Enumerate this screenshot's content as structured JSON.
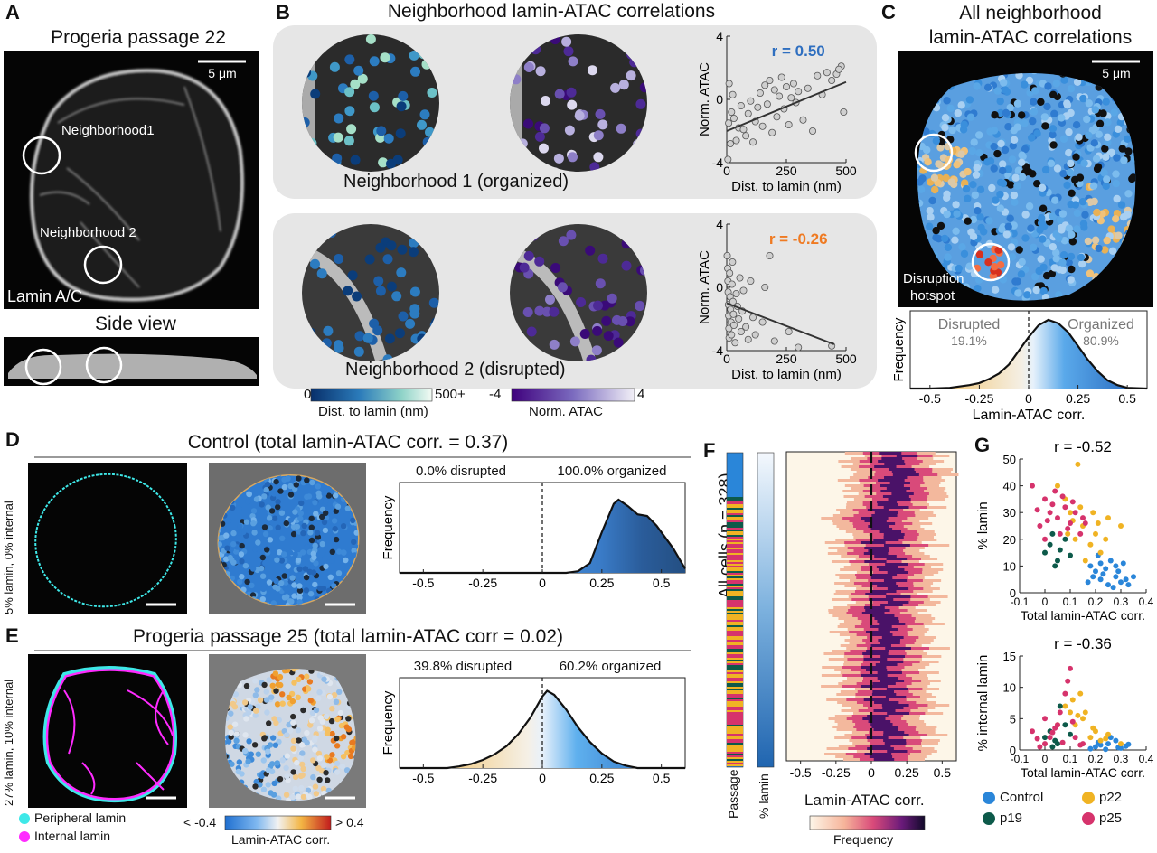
{
  "panels": {
    "A": {
      "letter": "A",
      "title": "Progeria passage 22",
      "scalebar": "5 μm",
      "neighborhood1": "Neighborhood1",
      "neighborhood2": "Neighborhood 2",
      "stain": "Lamin A/C",
      "side_view": "Side view"
    },
    "B": {
      "letter": "B",
      "title": "Neighborhood lamin-ATAC correlations",
      "n1_caption": "Neighborhood 1 (organized)",
      "n2_caption": "Neighborhood 2 (disrupted)",
      "colorbar_dist": {
        "min": "0",
        "max": "500+",
        "label": "Dist. to lamin (nm)"
      },
      "colorbar_atac": {
        "min": "-4",
        "max": "4",
        "label": "Norm. ATAC"
      }
    },
    "C": {
      "letter": "C",
      "title_line1": "All neighborhood",
      "title_line2": "lamin-ATAC correlations",
      "scalebar": "5 μm",
      "hotspot_line1": "Disruption",
      "hotspot_line2": "hotspot",
      "disrupted_label": "Disrupted",
      "disrupted_pct": "19.1%",
      "organized_label": "Organized",
      "organized_pct": "80.9%"
    },
    "D": {
      "letter": "D",
      "title": "Control (total lamin-ATAC corr. = 0.37)",
      "side_label": "5% lamin, 0% internal",
      "disrupted_text": "0.0% disrupted",
      "organized_text": "100.0% organized"
    },
    "E": {
      "letter": "E",
      "title": "Progeria passage 25 (total lamin-ATAC corr = 0.02)",
      "side_label": "27% lamin,  10% internal",
      "disrupted_text": "39.8% disrupted",
      "organized_text": "60.2% organized",
      "legend_peripheral": "Peripheral lamin",
      "legend_internal": "Internal lamin",
      "corr_bar_min": "< -0.4",
      "corr_bar_max": "> 0.4",
      "corr_bar_label": "Lamin-ATAC corr."
    },
    "F": {
      "letter": "F",
      "ylabel": "All cells (n = 328)",
      "col1": "Passage",
      "col2": "% lamin",
      "xlabel": "Lamin-ATAC corr.",
      "colorbar_label": "Frequency"
    },
    "G": {
      "letter": "G",
      "top_r": "r = -0.52",
      "bottom_r": "r = -0.36",
      "legend": [
        "Control",
        "p22",
        "p19",
        "p25"
      ]
    }
  },
  "axes": {
    "hist_ylabel": "Frequency",
    "hist_xlabel": "Lamin-ATAC corr.",
    "hist_ticks": [
      "-0.5",
      "-0.25",
      "0",
      "0.25",
      "0.5"
    ],
    "f_ticks": [
      "-0.5",
      "-0.25",
      "0",
      "0.25",
      "0.5"
    ],
    "scatter_xlabel": "Dist. to lamin (nm)",
    "scatter_ylabel": "Norm. ATAC",
    "scatter_xticks": [
      "0",
      "250",
      "500"
    ],
    "scatter_yticks": [
      "4",
      "0",
      "-4"
    ],
    "g_xlabel": "Total lamin-ATAC corr.",
    "g_xticks": [
      "-0.1",
      "0",
      "0.1",
      "0.2",
      "0.3",
      "0.4"
    ],
    "g_top_ylabel": "% lamin",
    "g_top_yticks": [
      "0",
      "10",
      "20",
      "30",
      "40",
      "50"
    ],
    "g_bot_ylabel": "%  internal lamin",
    "g_bot_yticks": [
      "0",
      "5",
      "10",
      "15"
    ]
  },
  "colors": {
    "control": "#2a86d9",
    "p22": "#f0b323",
    "p19": "#0d5a4a",
    "p25": "#d6336c",
    "cyan": "#3ee8e8",
    "magenta": "#ff2bff",
    "r_pos": "#2f6fc0",
    "r_neg": "#ef7a22"
  },
  "chart_data": [
    {
      "type": "scatter",
      "id": "B-n1",
      "title": "r = 0.50",
      "xlabel": "Dist. to lamin (nm)",
      "ylabel": "Norm. ATAC",
      "xlim": [
        0,
        500
      ],
      "ylim": [
        -4,
        4
      ],
      "fit": {
        "x": [
          0,
          500
        ],
        "y": [
          -2.0,
          1.1
        ]
      },
      "points": [
        [
          5,
          -3.8
        ],
        [
          8,
          -1.5
        ],
        [
          10,
          1.0
        ],
        [
          15,
          -2.8
        ],
        [
          20,
          -0.8
        ],
        [
          25,
          0.3
        ],
        [
          30,
          -1.2
        ],
        [
          40,
          -2.6
        ],
        [
          50,
          -1.8
        ],
        [
          60,
          -0.4
        ],
        [
          70,
          -1.9
        ],
        [
          80,
          -2.3
        ],
        [
          90,
          -0.9
        ],
        [
          100,
          -0.1
        ],
        [
          110,
          -2.7
        ],
        [
          120,
          -1.4
        ],
        [
          130,
          -0.5
        ],
        [
          140,
          0.4
        ],
        [
          150,
          -1.7
        ],
        [
          160,
          0.9
        ],
        [
          170,
          -0.3
        ],
        [
          180,
          1.2
        ],
        [
          190,
          -2.1
        ],
        [
          200,
          0.6
        ],
        [
          210,
          -1.1
        ],
        [
          220,
          0.2
        ],
        [
          230,
          1.4
        ],
        [
          240,
          -0.6
        ],
        [
          250,
          0.8
        ],
        [
          260,
          -1.6
        ],
        [
          270,
          0.1
        ],
        [
          280,
          1.0
        ],
        [
          290,
          -0.2
        ],
        [
          300,
          0.5
        ],
        [
          320,
          -1.3
        ],
        [
          340,
          0.7
        ],
        [
          360,
          -2.0
        ],
        [
          380,
          1.5
        ],
        [
          400,
          0.3
        ],
        [
          420,
          1.7
        ],
        [
          440,
          1.2
        ],
        [
          460,
          1.6
        ],
        [
          480,
          2.1
        ],
        [
          490,
          -0.8
        ],
        [
          470,
          1.9
        ]
      ]
    },
    {
      "type": "scatter",
      "id": "B-n2",
      "title": "r = -0.26",
      "xlabel": "Dist. to lamin (nm)",
      "ylabel": "Norm. ATAC",
      "xlim": [
        0,
        500
      ],
      "ylim": [
        -4,
        4
      ],
      "fit": {
        "x": [
          0,
          450
        ],
        "y": [
          -1.0,
          -3.6
        ]
      },
      "points": [
        [
          2,
          2.0
        ],
        [
          4,
          1.2
        ],
        [
          5,
          0.4
        ],
        [
          6,
          -0.3
        ],
        [
          7,
          -1.1
        ],
        [
          8,
          -1.8
        ],
        [
          9,
          -2.6
        ],
        [
          10,
          -3.2
        ],
        [
          12,
          0.9
        ],
        [
          14,
          -0.6
        ],
        [
          16,
          -1.4
        ],
        [
          18,
          -2.2
        ],
        [
          20,
          -3.0
        ],
        [
          22,
          0.2
        ],
        [
          24,
          1.6
        ],
        [
          26,
          -0.9
        ],
        [
          28,
          -1.7
        ],
        [
          30,
          -2.4
        ],
        [
          35,
          -3.5
        ],
        [
          40,
          -0.4
        ],
        [
          45,
          -1.2
        ],
        [
          50,
          -2.0
        ],
        [
          55,
          0.6
        ],
        [
          60,
          -2.8
        ],
        [
          65,
          -1.5
        ],
        [
          70,
          -0.2
        ],
        [
          80,
          -2.5
        ],
        [
          90,
          -3.3
        ],
        [
          100,
          0.4
        ],
        [
          110,
          -1.9
        ],
        [
          120,
          -3.0
        ],
        [
          150,
          -2.2
        ],
        [
          160,
          0.0
        ],
        [
          180,
          2.0
        ],
        [
          200,
          -3.4
        ],
        [
          260,
          -2.8
        ],
        [
          300,
          -3.8
        ],
        [
          440,
          -3.7
        ]
      ]
    },
    {
      "type": "area",
      "id": "C-hist",
      "xlabel": "Lamin-ATAC corr.",
      "ylabel": "Frequency",
      "xlim": [
        -0.6,
        0.6
      ],
      "x": [
        -0.6,
        -0.5,
        -0.4,
        -0.3,
        -0.25,
        -0.2,
        -0.15,
        -0.1,
        -0.05,
        0,
        0.05,
        0.1,
        0.15,
        0.2,
        0.25,
        0.3,
        0.35,
        0.4,
        0.45,
        0.5,
        0.6
      ],
      "y": [
        0,
        0,
        0.01,
        0.05,
        0.08,
        0.14,
        0.22,
        0.35,
        0.55,
        0.75,
        0.92,
        1.0,
        0.95,
        0.82,
        0.62,
        0.42,
        0.25,
        0.12,
        0.05,
        0.01,
        0
      ]
    },
    {
      "type": "area",
      "id": "D-hist",
      "xlabel": "Lamin-ATAC corr.",
      "ylabel": "Frequency",
      "xlim": [
        -0.6,
        0.6
      ],
      "x": [
        -0.6,
        0,
        0.1,
        0.15,
        0.2,
        0.25,
        0.3,
        0.32,
        0.36,
        0.4,
        0.44,
        0.48,
        0.52,
        0.55,
        0.58,
        0.6
      ],
      "y": [
        0,
        0,
        0.0,
        0.02,
        0.12,
        0.5,
        0.85,
        0.9,
        0.82,
        0.72,
        0.7,
        0.58,
        0.42,
        0.3,
        0.15,
        0.05
      ]
    },
    {
      "type": "area",
      "id": "E-hist",
      "xlabel": "Lamin-ATAC corr.",
      "ylabel": "Frequency",
      "xlim": [
        -0.6,
        0.6
      ],
      "x": [
        -0.6,
        -0.4,
        -0.35,
        -0.3,
        -0.25,
        -0.2,
        -0.15,
        -0.1,
        -0.05,
        0,
        0.02,
        0.05,
        0.1,
        0.15,
        0.2,
        0.25,
        0.3,
        0.35,
        0.4,
        0.6
      ],
      "y": [
        0,
        0,
        0.02,
        0.05,
        0.1,
        0.17,
        0.27,
        0.42,
        0.62,
        0.88,
        0.95,
        0.9,
        0.72,
        0.5,
        0.32,
        0.18,
        0.08,
        0.03,
        0.0,
        0
      ]
    },
    {
      "type": "scatter",
      "id": "G-top",
      "title": "r = -0.52",
      "xlabel": "Total lamin-ATAC corr.",
      "ylabel": "% lamin",
      "xlim": [
        -0.1,
        0.4
      ],
      "ylim": [
        0,
        50
      ],
      "series": [
        {
          "name": "Control",
          "points": [
            [
              0.2,
              8
            ],
            [
              0.22,
              5
            ],
            [
              0.25,
              3
            ],
            [
              0.28,
              6
            ],
            [
              0.3,
              4
            ],
            [
              0.18,
              10
            ],
            [
              0.24,
              9
            ],
            [
              0.32,
              5
            ],
            [
              0.26,
              12
            ],
            [
              0.21,
              14
            ],
            [
              0.29,
              8
            ],
            [
              0.33,
              3
            ],
            [
              0.23,
              7
            ],
            [
              0.27,
              2
            ],
            [
              0.19,
              6
            ],
            [
              0.31,
              11
            ],
            [
              0.17,
              4
            ],
            [
              0.35,
              6
            ],
            [
              0.22,
              11
            ],
            [
              0.28,
              10
            ]
          ]
        },
        {
          "name": "p22",
          "points": [
            [
              0.1,
              30
            ],
            [
              0.15,
              25
            ],
            [
              0.12,
              20
            ],
            [
              0.2,
              22
            ],
            [
              0.08,
              35
            ],
            [
              0.18,
              18
            ],
            [
              0.22,
              15
            ],
            [
              0.25,
              28
            ],
            [
              0.05,
              40
            ],
            [
              0.14,
              32
            ],
            [
              0.16,
              12
            ],
            [
              0.3,
              25
            ],
            [
              0.11,
              27
            ],
            [
              0.19,
              30
            ],
            [
              0.13,
              48
            ],
            [
              0.24,
              20
            ],
            [
              0.09,
              22
            ],
            [
              0.21,
              26
            ]
          ]
        },
        {
          "name": "p19",
          "points": [
            [
              0.0,
              15
            ],
            [
              0.02,
              18
            ],
            [
              0.05,
              12
            ],
            [
              0.08,
              20
            ],
            [
              0.03,
              22
            ],
            [
              0.06,
              16
            ],
            [
              0.1,
              14
            ],
            [
              0.04,
              10
            ]
          ]
        },
        {
          "name": "p25",
          "points": [
            [
              -0.05,
              40
            ],
            [
              0.0,
              35
            ],
            [
              0.02,
              30
            ],
            [
              0.05,
              28
            ],
            [
              -0.02,
              25
            ],
            [
              0.08,
              32
            ],
            [
              0.1,
              26
            ],
            [
              0.04,
              38
            ],
            [
              0.06,
              22
            ],
            [
              0.12,
              30
            ],
            [
              0.15,
              28
            ],
            [
              0.0,
              20
            ],
            [
              0.03,
              33
            ],
            [
              0.07,
              36
            ],
            [
              0.09,
              24
            ],
            [
              0.11,
              34
            ],
            [
              0.14,
              22
            ],
            [
              -0.03,
              31
            ],
            [
              0.16,
              26
            ],
            [
              0.01,
              27
            ]
          ]
        }
      ]
    },
    {
      "type": "scatter",
      "id": "G-bottom",
      "title": "r = -0.36",
      "xlabel": "Total lamin-ATAC corr.",
      "ylabel": "%  internal lamin",
      "xlim": [
        -0.1,
        0.4
      ],
      "ylim": [
        0,
        15
      ],
      "series": [
        {
          "name": "Control",
          "points": [
            [
              0.2,
              0.5
            ],
            [
              0.25,
              1.0
            ],
            [
              0.3,
              0.3
            ],
            [
              0.22,
              0.8
            ],
            [
              0.28,
              1.5
            ],
            [
              0.18,
              0.2
            ],
            [
              0.32,
              0.6
            ],
            [
              0.24,
              0.1
            ],
            [
              0.26,
              2.0
            ],
            [
              0.21,
              1.2
            ],
            [
              0.29,
              0.4
            ],
            [
              0.33,
              0.9
            ]
          ]
        },
        {
          "name": "p22",
          "points": [
            [
              0.1,
              6
            ],
            [
              0.15,
              5
            ],
            [
              0.12,
              4
            ],
            [
              0.2,
              3
            ],
            [
              0.08,
              7
            ],
            [
              0.18,
              2
            ],
            [
              0.22,
              1.5
            ],
            [
              0.25,
              2.5
            ],
            [
              0.05,
              4
            ],
            [
              0.14,
              9
            ],
            [
              0.16,
              6
            ],
            [
              0.3,
              1
            ],
            [
              0.11,
              8
            ],
            [
              0.19,
              3.5
            ],
            [
              0.13,
              5.5
            ],
            [
              0.24,
              1.8
            ]
          ]
        },
        {
          "name": "p19",
          "points": [
            [
              0.0,
              2
            ],
            [
              0.02,
              3
            ],
            [
              0.05,
              1
            ],
            [
              0.08,
              4
            ],
            [
              0.03,
              0.5
            ],
            [
              0.06,
              7
            ],
            [
              0.1,
              2.5
            ],
            [
              0.04,
              1.5
            ]
          ]
        },
        {
          "name": "p25",
          "points": [
            [
              -0.05,
              3
            ],
            [
              0.0,
              1
            ],
            [
              0.02,
              2
            ],
            [
              0.05,
              4
            ],
            [
              -0.02,
              0.5
            ],
            [
              0.08,
              9
            ],
            [
              0.1,
              13
            ],
            [
              0.04,
              3.5
            ],
            [
              0.06,
              6
            ],
            [
              0.12,
              2
            ],
            [
              0.15,
              1
            ],
            [
              0.0,
              5
            ],
            [
              0.03,
              2.8
            ],
            [
              0.07,
              1.2
            ],
            [
              0.09,
              11
            ],
            [
              0.11,
              4.5
            ],
            [
              0.14,
              0.8
            ],
            [
              -0.03,
              1.8
            ]
          ]
        }
      ]
    }
  ]
}
